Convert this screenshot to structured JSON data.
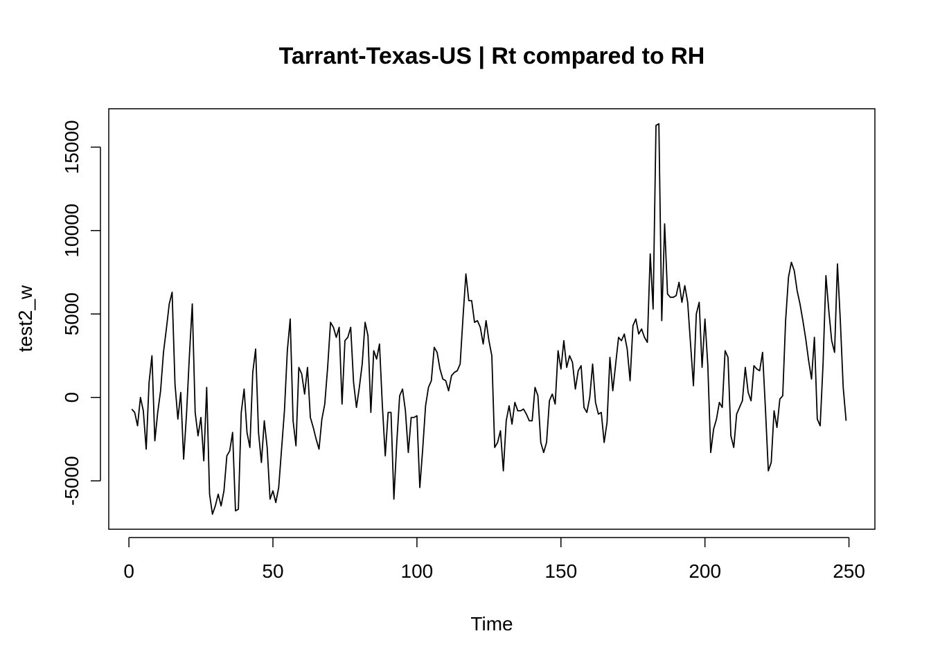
{
  "chart_data": {
    "type": "line",
    "title": "Tarrant-Texas-US | Rt compared to RH",
    "xlabel": "Time",
    "ylabel": "test2_w",
    "xlim": [
      -7,
      259
    ],
    "ylim": [
      -7900,
      17300
    ],
    "x_ticks": [
      0,
      50,
      100,
      150,
      200,
      250
    ],
    "y_ticks": [
      -5000,
      0,
      5000,
      10000,
      15000
    ],
    "grid": false,
    "legend": "none",
    "line_color": "#000000",
    "x_start": 1,
    "series": [
      {
        "values": [
          -700,
          -900,
          -1700,
          0,
          -800,
          -3100,
          900,
          2500,
          -2600,
          -900,
          400,
          2700,
          4100,
          5600,
          6300,
          800,
          -1300,
          300,
          -3700,
          -1000,
          2500,
          5600,
          -900,
          -2300,
          -1200,
          -3800,
          600,
          -5800,
          -7000,
          -6500,
          -5800,
          -6500,
          -5600,
          -3500,
          -3200,
          -2100,
          -6800,
          -6700,
          -900,
          500,
          -2100,
          -3000,
          1500,
          2900,
          -2100,
          -3900,
          -1400,
          -3000,
          -6100,
          -5600,
          -6300,
          -5400,
          -3100,
          -800,
          2800,
          4700,
          -1400,
          -2900,
          1800,
          1400,
          200,
          1800,
          -1200,
          -1800,
          -2500,
          -3100,
          -1300,
          -400,
          1800,
          4500,
          4200,
          3600,
          4200,
          -400,
          3400,
          3600,
          4200,
          900,
          -600,
          600,
          2000,
          4500,
          3700,
          -900,
          2800,
          2300,
          3200,
          -500,
          -3500,
          -900,
          -900,
          -6100,
          -2700,
          100,
          500,
          -800,
          -3300,
          -1200,
          -1200,
          -1100,
          -5400,
          -3100,
          -500,
          600,
          1000,
          3000,
          2700,
          1700,
          1100,
          1000,
          400,
          1300,
          1500,
          1600,
          2000,
          4800,
          7400,
          5800,
          5800,
          4500,
          4600,
          4200,
          3200,
          4600,
          3400,
          2500,
          -3000,
          -2700,
          -2000,
          -4400,
          -1400,
          -500,
          -1600,
          -300,
          -800,
          -800,
          -700,
          -1000,
          -1400,
          -1400,
          600,
          100,
          -2700,
          -3300,
          -2700,
          -200,
          200,
          -400,
          2800,
          1700,
          3400,
          1800,
          2500,
          2100,
          500,
          1600,
          1900,
          -600,
          -900,
          0,
          2000,
          -300,
          -1000,
          -900,
          -2700,
          -1500,
          2400,
          400,
          2000,
          3600,
          3400,
          3800,
          2900,
          1000,
          4300,
          4700,
          3800,
          4100,
          3600,
          3300,
          8600,
          5300,
          16300,
          16400,
          4600,
          10400,
          6200,
          6000,
          6000,
          6100,
          6900,
          5700,
          6700,
          5700,
          3200,
          700,
          5000,
          5700,
          1800,
          4700,
          1900,
          -3300,
          -1900,
          -1300,
          -300,
          -600,
          2800,
          2400,
          -2300,
          -3000,
          -1000,
          -600,
          -200,
          1800,
          300,
          -200,
          1900,
          1700,
          1600,
          2700,
          -700,
          -4400,
          -3900,
          -800,
          -1800,
          -100,
          100,
          4600,
          7200,
          8100,
          7600,
          6400,
          5600,
          4600,
          3500,
          2200,
          1100,
          3600,
          -1300,
          -1700,
          2000,
          7300,
          5200,
          3400,
          2700,
          8000,
          4600,
          600,
          -1400
        ]
      }
    ]
  }
}
